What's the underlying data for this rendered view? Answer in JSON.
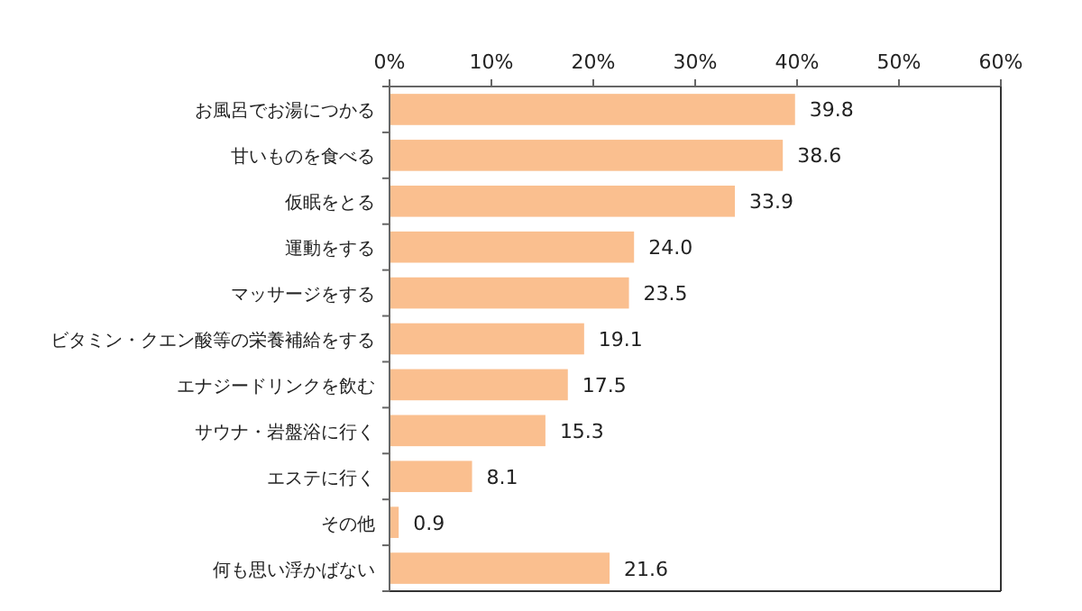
{
  "chart_data": {
    "type": "bar",
    "orientation": "horizontal",
    "categories": [
      "お風呂でお湯につかる",
      "甘いものを食べる",
      "仮眠をとる",
      "運動をする",
      "マッサージをする",
      "ビタミン・クエン酸等の栄養補給をする",
      "エナジードリンクを飲む",
      "サウナ・岩盤浴に行く",
      "エステに行く",
      "その他",
      "何も思い浮かばない"
    ],
    "values": [
      39.8,
      38.6,
      33.9,
      24.0,
      23.5,
      19.1,
      17.5,
      15.3,
      8.1,
      0.9,
      21.6
    ],
    "value_labels": [
      "39.8",
      "38.6",
      "33.9",
      "24.0",
      "23.5",
      "19.1",
      "17.5",
      "15.3",
      "8.1",
      "0.9",
      "21.6"
    ],
    "color": "#fabf8f",
    "xlim": [
      0,
      60
    ],
    "xticks": [
      {
        "value": 0,
        "label": "0%"
      },
      {
        "value": 10,
        "label": "10%"
      },
      {
        "value": 20,
        "label": "20%"
      },
      {
        "value": 30,
        "label": "30%"
      },
      {
        "value": 40,
        "label": "40%"
      },
      {
        "value": 50,
        "label": "50%"
      },
      {
        "value": 60,
        "label": "60%"
      }
    ],
    "grid": false
  }
}
